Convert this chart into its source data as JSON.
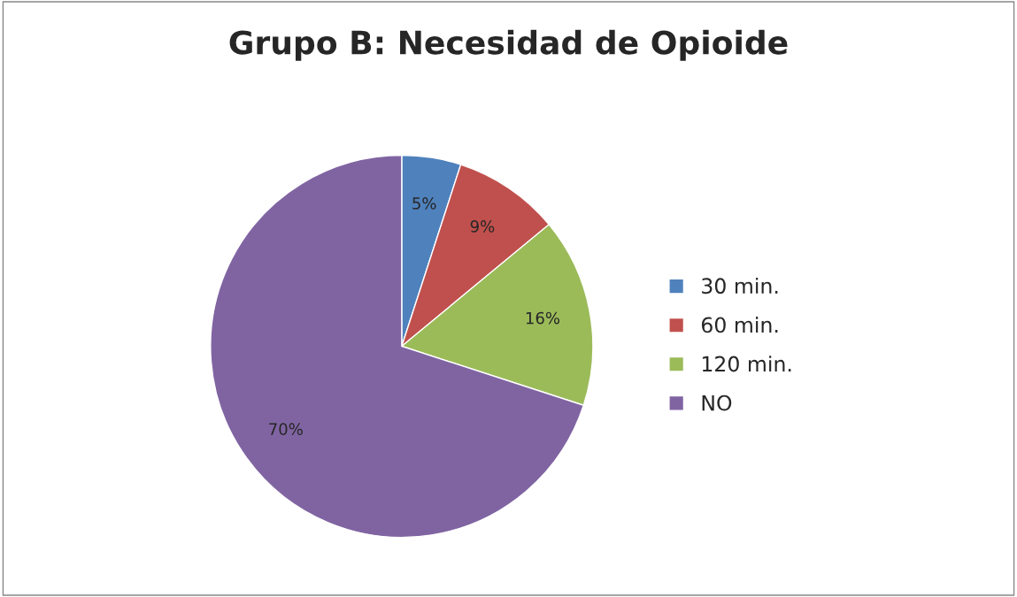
{
  "chart_data": {
    "type": "pie",
    "title": "Grupo B: Necesidad de Opioide",
    "categories": [
      "30 min.",
      "60 min.",
      "120 min.",
      "NO"
    ],
    "values": [
      5,
      9,
      16,
      70
    ],
    "colors": [
      "#4f81bd",
      "#c0504d",
      "#9bbb59",
      "#8064a2"
    ],
    "value_labels": [
      "5%",
      "9%",
      "16%",
      "70%"
    ],
    "legend": "right"
  }
}
